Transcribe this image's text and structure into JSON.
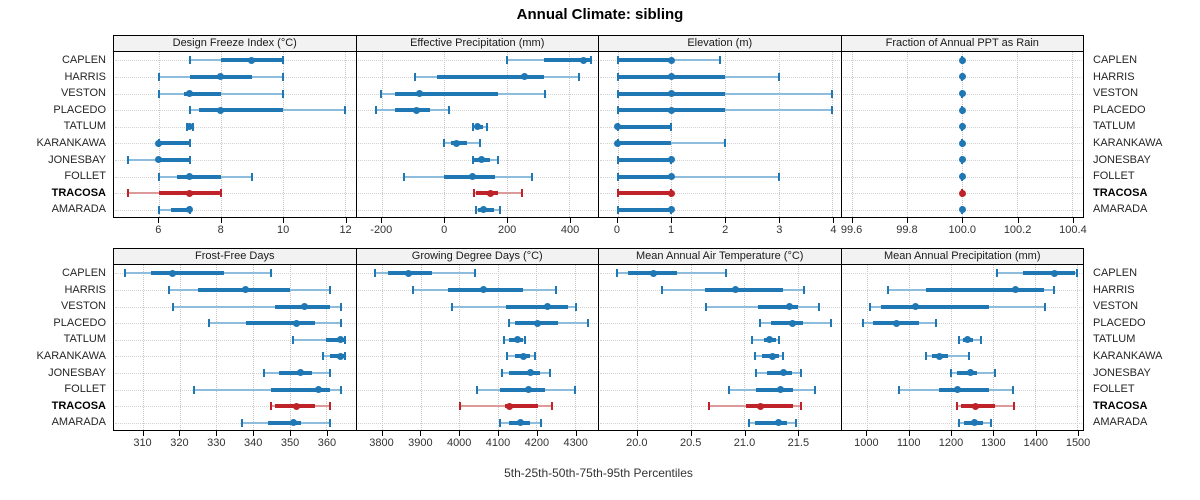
{
  "title": "Annual Climate: sibling",
  "colors": {
    "blue": "#1f77b4",
    "blue_light": "#8ebcdd",
    "red": "#bf2228",
    "red_light": "#dd9a9a",
    "grid": "#c6c6c6",
    "header_bg": "#f2f2f2",
    "border": "#000000",
    "text": "#262626"
  },
  "chart_data": {
    "type": "trellis-dotplot-percentiles",
    "title": "Annual Climate: sibling",
    "xlabel": "5th-25th-50th-75th-95th Percentiles",
    "percentiles": [
      "5th",
      "25th",
      "50th",
      "75th",
      "95th"
    ],
    "stations": [
      "CAPLEN",
      "HARRIS",
      "VESTON",
      "PLACEDO",
      "TATLUM",
      "KARANKAWA",
      "JONESBAY",
      "FOLLET",
      "TRACOSA",
      "AMARADA"
    ],
    "highlighted_station": "TRACOSA",
    "grid": "dotted",
    "legend_position": "none",
    "rows": [
      [
        {
          "name": "Design Freeze Index (°C)",
          "domain": [
            4.55,
            12.35
          ],
          "ticks": [
            6,
            8,
            10,
            12
          ],
          "tick_labels": [
            "6",
            "8",
            "10",
            "12"
          ],
          "values": [
            [
              7,
              8,
              9,
              10,
              10
            ],
            [
              6,
              7,
              8,
              9,
              10
            ],
            [
              6,
              6.8,
              7,
              8,
              10
            ],
            [
              7,
              7.3,
              8,
              10,
              12
            ],
            [
              6.9,
              7,
              7,
              7,
              7.1
            ],
            [
              6,
              6,
              6,
              7,
              7
            ],
            [
              5,
              5.9,
              6,
              7,
              7
            ],
            [
              6,
              6.6,
              7,
              8,
              9
            ],
            [
              5,
              6,
              7,
              8,
              8
            ],
            [
              6,
              6.4,
              7,
              7,
              7
            ]
          ]
        },
        {
          "name": "Effective Precipitation (mm)",
          "domain": [
            -282,
            492
          ],
          "ticks": [
            -200,
            0,
            200,
            400
          ],
          "tick_labels": [
            "-200",
            "0",
            "200",
            "400"
          ],
          "values": [
            [
              200,
              320,
              445,
              465,
              470
            ],
            [
              -95,
              -25,
              258,
              318,
              430
            ],
            [
              -205,
              -160,
              -80,
              170,
              322
            ],
            [
              -220,
              -160,
              -90,
              -48,
              15
            ],
            [
              92,
              97,
              105,
              122,
              136
            ],
            [
              0,
              20,
              40,
              72,
              115
            ],
            [
              90,
              96,
              120,
              147,
              170
            ],
            [
              -130,
              0,
              90,
              163,
              282
            ],
            [
              95,
              102,
              146,
              173,
              250
            ],
            [
              101,
              107,
              126,
              160,
              179
            ]
          ]
        },
        {
          "name": "Elevation (m)",
          "domain": [
            -0.35,
            4.15
          ],
          "ticks": [
            0,
            1,
            2,
            3,
            4
          ],
          "tick_labels": [
            "0",
            "1",
            "2",
            "3",
            "4"
          ],
          "values": [
            [
              0,
              0,
              1,
              1,
              1.9
            ],
            [
              0,
              0,
              1,
              2,
              3
            ],
            [
              0,
              0,
              1,
              2,
              4
            ],
            [
              0,
              0,
              1,
              2,
              4
            ],
            [
              0,
              0,
              0,
              1,
              1
            ],
            [
              0,
              0,
              0,
              1,
              2
            ],
            [
              0,
              0,
              1,
              1,
              1
            ],
            [
              0,
              0,
              1,
              1,
              3
            ],
            [
              0,
              0,
              1,
              1,
              1
            ],
            [
              0,
              0,
              1,
              1,
              1
            ]
          ]
        },
        {
          "name": "Fraction of Annual PPT as Rain",
          "domain": [
            99.56,
            100.44
          ],
          "ticks": [
            99.6,
            99.8,
            100.0,
            100.2,
            100.4
          ],
          "tick_labels": [
            "99.6",
            "99.8",
            "100.0",
            "100.2",
            "100.4"
          ],
          "values": [
            [
              100,
              100,
              100,
              100,
              100
            ],
            [
              100,
              100,
              100,
              100,
              100
            ],
            [
              100,
              100,
              100,
              100,
              100
            ],
            [
              100,
              100,
              100,
              100,
              100
            ],
            [
              100,
              100,
              100,
              100,
              100
            ],
            [
              100,
              100,
              100,
              100,
              100
            ],
            [
              100,
              100,
              100,
              100,
              100
            ],
            [
              100,
              100,
              100,
              100,
              100
            ],
            [
              100,
              100,
              100,
              100,
              100
            ],
            [
              100,
              100,
              100,
              100,
              100
            ]
          ]
        }
      ],
      [
        {
          "name": "Frost-Free Days",
          "domain": [
            302,
            368
          ],
          "ticks": [
            310,
            320,
            330,
            340,
            350,
            360
          ],
          "tick_labels": [
            "310",
            "320",
            "330",
            "340",
            "350",
            "360"
          ],
          "values": [
            [
              305,
              312,
              318,
              332,
              345
            ],
            [
              317,
              325,
              338,
              350,
              361
            ],
            [
              318,
              346,
              354,
              361,
              364
            ],
            [
              328,
              338,
              352,
              357,
              364
            ],
            [
              351,
              360,
              364,
              365,
              365
            ],
            [
              359,
              361,
              364,
              365,
              365
            ],
            [
              343,
              347,
              353,
              356,
              361
            ],
            [
              324,
              345,
              358,
              361,
              364
            ],
            [
              345,
              346,
              352,
              357,
              361
            ],
            [
              337,
              344,
              351,
              353,
              361
            ]
          ]
        },
        {
          "name": "Growing Degree Days (°C)",
          "domain": [
            3733,
            4360
          ],
          "ticks": [
            3800,
            3900,
            4000,
            4100,
            4200,
            4300
          ],
          "tick_labels": [
            "3800",
            "3900",
            "4000",
            "4100",
            "4200",
            "4300"
          ],
          "values": [
            [
              3780,
              3815,
              3868,
              3930,
              4040
            ],
            [
              3880,
              3970,
              4062,
              4165,
              4250
            ],
            [
              3980,
              4122,
              4228,
              4282,
              4302
            ],
            [
              4130,
              4145,
              4203,
              4255,
              4335
            ],
            [
              4115,
              4130,
              4150,
              4165,
              4170
            ],
            [
              4125,
              4145,
              4166,
              4184,
              4196
            ],
            [
              4110,
              4130,
              4184,
              4210,
              4235
            ],
            [
              4046,
              4106,
              4180,
              4222,
              4300
            ],
            [
              4003,
              4118,
              4130,
              4203,
              4240
            ],
            [
              4105,
              4128,
              4160,
              4184,
              4212
            ]
          ]
        },
        {
          "name": "Mean Annual Air Temperature (°C)",
          "domain": [
            19.64,
            21.9
          ],
          "ticks": [
            20.0,
            20.5,
            21.0,
            21.5
          ],
          "tick_labels": [
            "20.0",
            "20.5",
            "21.0",
            "21.5"
          ],
          "values": [
            [
              19.81,
              19.91,
              20.15,
              20.37,
              20.83
            ],
            [
              20.23,
              20.63,
              20.92,
              21.36,
              21.56
            ],
            [
              20.64,
              21.13,
              21.42,
              21.5,
              21.7
            ],
            [
              21.15,
              21.25,
              21.45,
              21.55,
              21.81
            ],
            [
              21.07,
              21.18,
              21.24,
              21.3,
              21.32
            ],
            [
              21.1,
              21.17,
              21.26,
              21.32,
              21.36
            ],
            [
              21.11,
              21.21,
              21.37,
              21.45,
              21.53
            ],
            [
              20.86,
              21.11,
              21.34,
              21.46,
              21.66
            ],
            [
              20.67,
              21.02,
              21.15,
              21.46,
              21.53
            ],
            [
              21.04,
              21.1,
              21.32,
              21.4,
              21.48
            ]
          ]
        },
        {
          "name": "Mean Annual Precipitation (mm)",
          "domain": [
            939,
            1514
          ],
          "ticks": [
            1000,
            1100,
            1200,
            1300,
            1400,
            1500
          ],
          "tick_labels": [
            "1000",
            "1100",
            "1200",
            "1300",
            "1400",
            "1500"
          ],
          "values": [
            [
              1310,
              1370,
              1445,
              1495,
              1500
            ],
            [
              1050,
              1140,
              1353,
              1420,
              1445
            ],
            [
              1008,
              1032,
              1115,
              1290,
              1423
            ],
            [
              990,
              1015,
              1070,
              1123,
              1165
            ],
            [
              1218,
              1228,
              1240,
              1253,
              1270
            ],
            [
              1140,
              1155,
              1172,
              1192,
              1243
            ],
            [
              1200,
              1214,
              1246,
              1261,
              1304
            ],
            [
              1075,
              1170,
              1216,
              1290,
              1347
            ],
            [
              1214,
              1224,
              1258,
              1304,
              1350
            ],
            [
              1219,
              1230,
              1255,
              1277,
              1295
            ]
          ]
        }
      ]
    ]
  }
}
